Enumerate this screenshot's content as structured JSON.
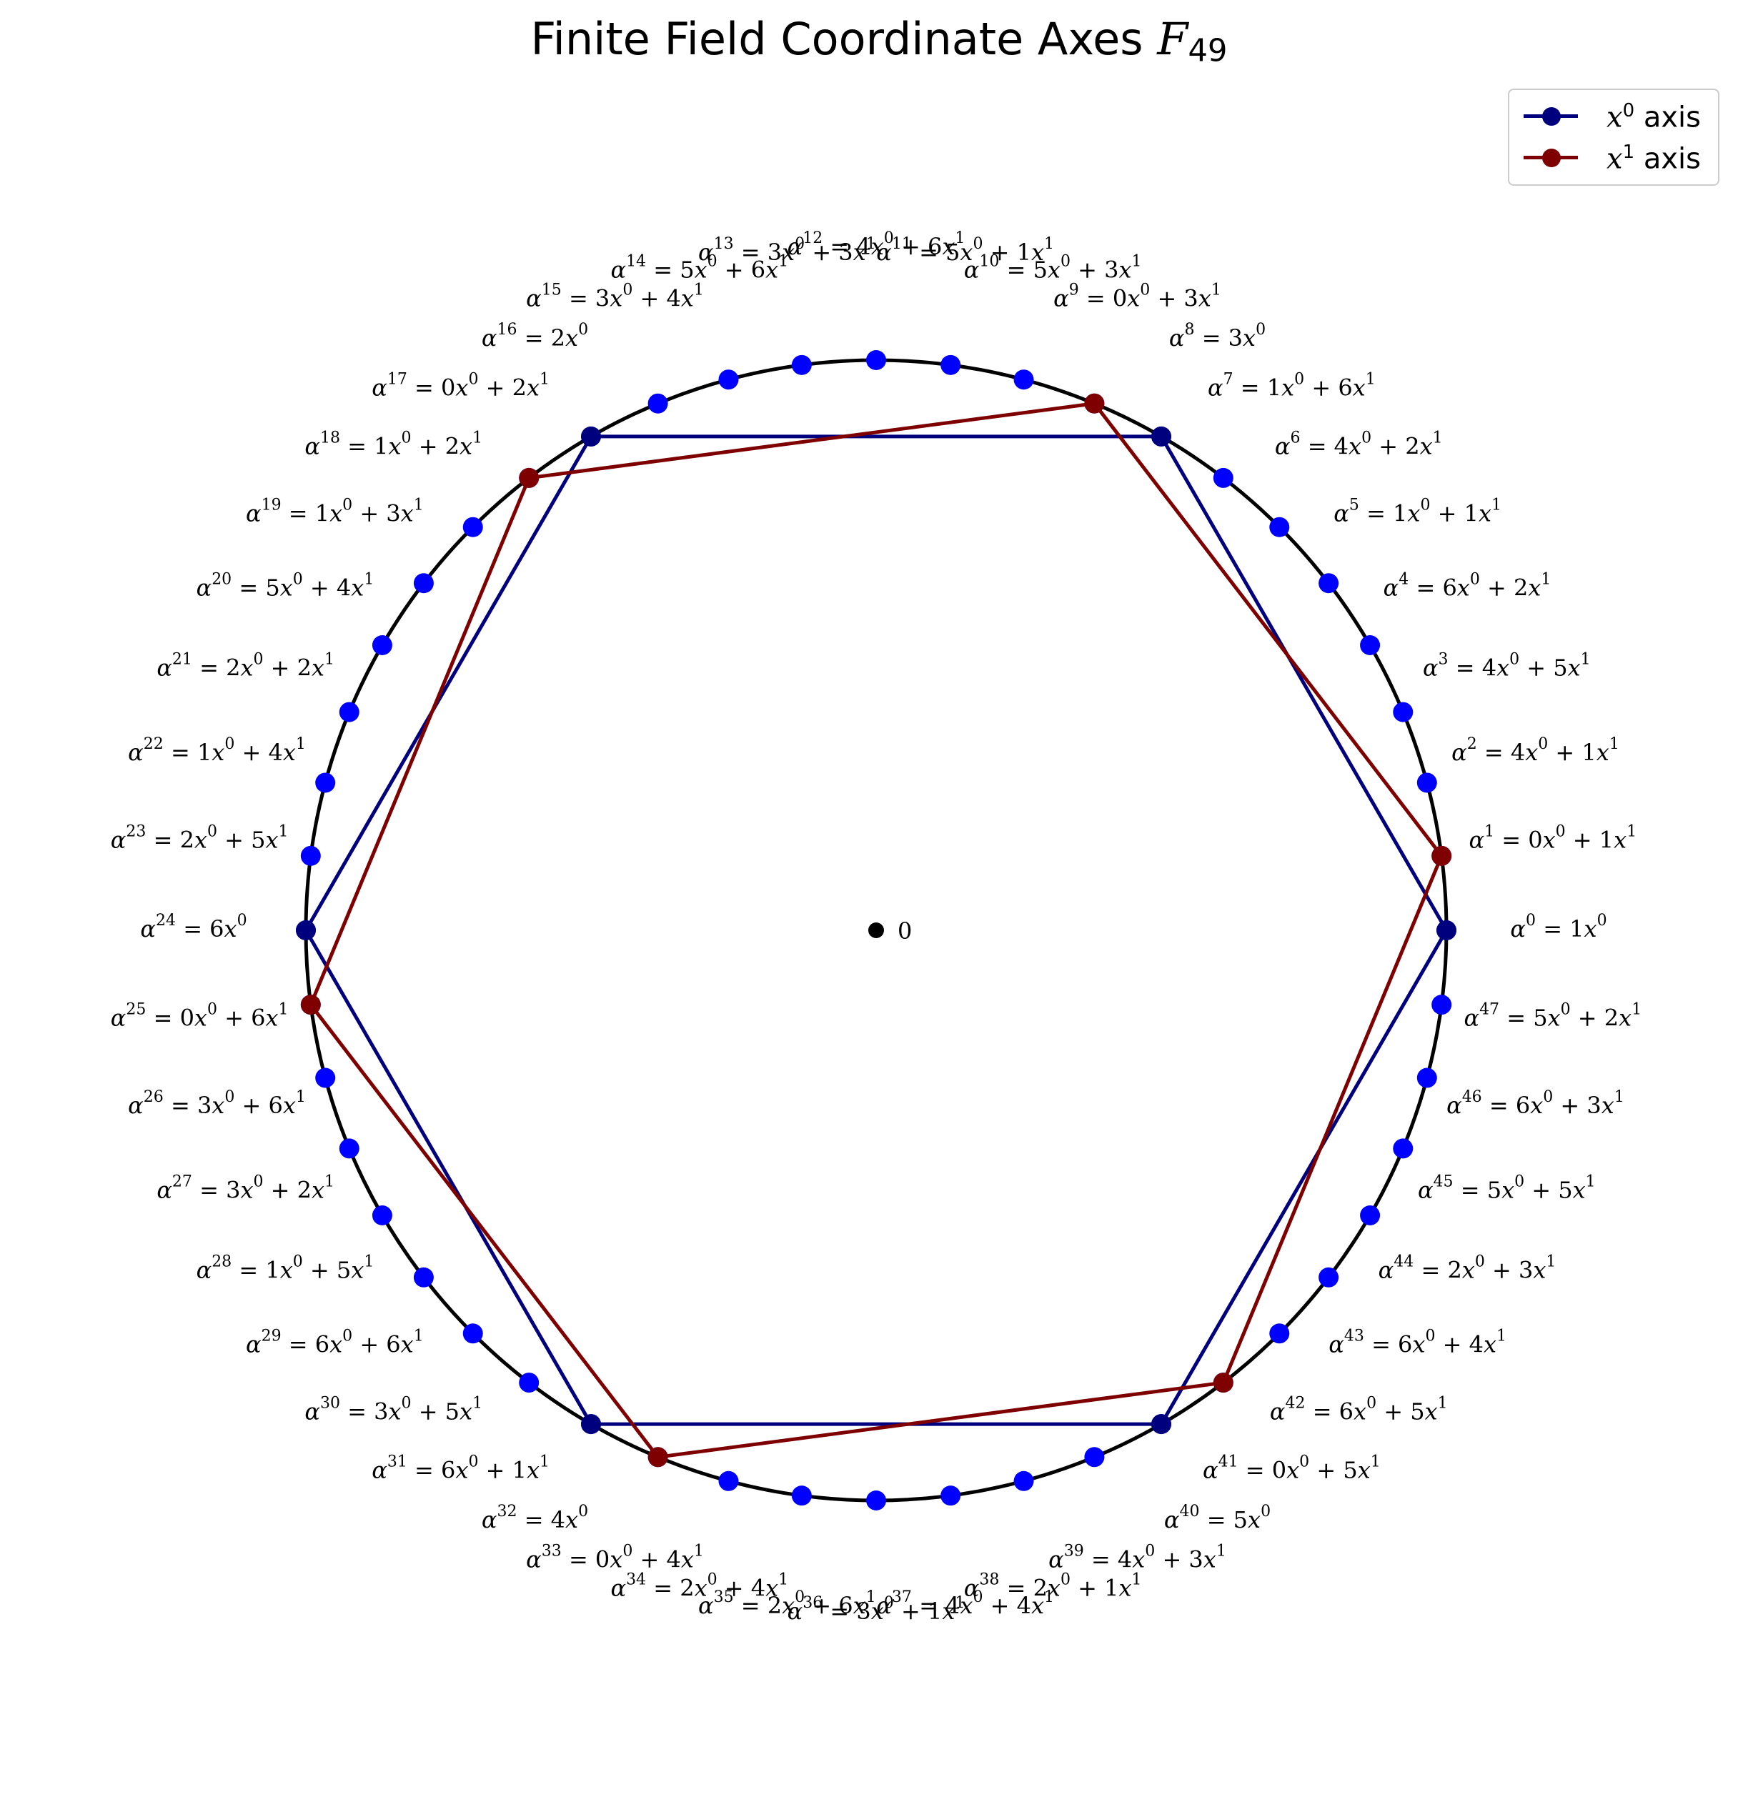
{
  "title": {
    "text": "Finite Field Coordinate Axes ",
    "symbol": "F",
    "subscript": "49"
  },
  "legend": {
    "x0": {
      "symbol": "x",
      "sup": "0",
      "suffix": " axis"
    },
    "x1": {
      "symbol": "x",
      "sup": "1",
      "suffix": " axis"
    }
  },
  "colors": {
    "circle": "#000000",
    "point": "#0000ff",
    "x0_axis": "#00007f",
    "x1_axis": "#7f0000",
    "origin": "#000000"
  },
  "diagram": {
    "field_order": 49,
    "points": [
      {
        "n": 0,
        "a": 1,
        "b": null
      },
      {
        "n": 1,
        "a": 0,
        "b": 1
      },
      {
        "n": 2,
        "a": 4,
        "b": 1
      },
      {
        "n": 3,
        "a": 4,
        "b": 5
      },
      {
        "n": 4,
        "a": 6,
        "b": 2
      },
      {
        "n": 5,
        "a": 1,
        "b": 1
      },
      {
        "n": 6,
        "a": 4,
        "b": 2
      },
      {
        "n": 7,
        "a": 1,
        "b": 6
      },
      {
        "n": 8,
        "a": 3,
        "b": null
      },
      {
        "n": 9,
        "a": 0,
        "b": 3
      },
      {
        "n": 10,
        "a": 5,
        "b": 3
      },
      {
        "n": 11,
        "a": 5,
        "b": 1
      },
      {
        "n": 12,
        "a": 4,
        "b": 6
      },
      {
        "n": 13,
        "a": 3,
        "b": 3
      },
      {
        "n": 14,
        "a": 5,
        "b": 6
      },
      {
        "n": 15,
        "a": 3,
        "b": 4
      },
      {
        "n": 16,
        "a": 2,
        "b": null
      },
      {
        "n": 17,
        "a": 0,
        "b": 2
      },
      {
        "n": 18,
        "a": 1,
        "b": 2
      },
      {
        "n": 19,
        "a": 1,
        "b": 3
      },
      {
        "n": 20,
        "a": 5,
        "b": 4
      },
      {
        "n": 21,
        "a": 2,
        "b": 2
      },
      {
        "n": 22,
        "a": 1,
        "b": 4
      },
      {
        "n": 23,
        "a": 2,
        "b": 5
      },
      {
        "n": 24,
        "a": 6,
        "b": null
      },
      {
        "n": 25,
        "a": 0,
        "b": 6
      },
      {
        "n": 26,
        "a": 3,
        "b": 6
      },
      {
        "n": 27,
        "a": 3,
        "b": 2
      },
      {
        "n": 28,
        "a": 1,
        "b": 5
      },
      {
        "n": 29,
        "a": 6,
        "b": 6
      },
      {
        "n": 30,
        "a": 3,
        "b": 5
      },
      {
        "n": 31,
        "a": 6,
        "b": 1
      },
      {
        "n": 32,
        "a": 4,
        "b": null
      },
      {
        "n": 33,
        "a": 0,
        "b": 4
      },
      {
        "n": 34,
        "a": 2,
        "b": 4
      },
      {
        "n": 35,
        "a": 2,
        "b": 6
      },
      {
        "n": 36,
        "a": 3,
        "b": 1
      },
      {
        "n": 37,
        "a": 4,
        "b": 4
      },
      {
        "n": 38,
        "a": 2,
        "b": 1
      },
      {
        "n": 39,
        "a": 4,
        "b": 3
      },
      {
        "n": 40,
        "a": 5,
        "b": null
      },
      {
        "n": 41,
        "a": 0,
        "b": 5
      },
      {
        "n": 42,
        "a": 6,
        "b": 5
      },
      {
        "n": 43,
        "a": 6,
        "b": 4
      },
      {
        "n": 44,
        "a": 2,
        "b": 3
      },
      {
        "n": 45,
        "a": 5,
        "b": 5
      },
      {
        "n": 46,
        "a": 6,
        "b": 3
      },
      {
        "n": 47,
        "a": 5,
        "b": 2
      }
    ],
    "x0_axis_powers": [
      0,
      8,
      16,
      24,
      32,
      40
    ],
    "x1_axis_powers": [
      1,
      9,
      17,
      25,
      33,
      41
    ],
    "origin_label": "0"
  }
}
